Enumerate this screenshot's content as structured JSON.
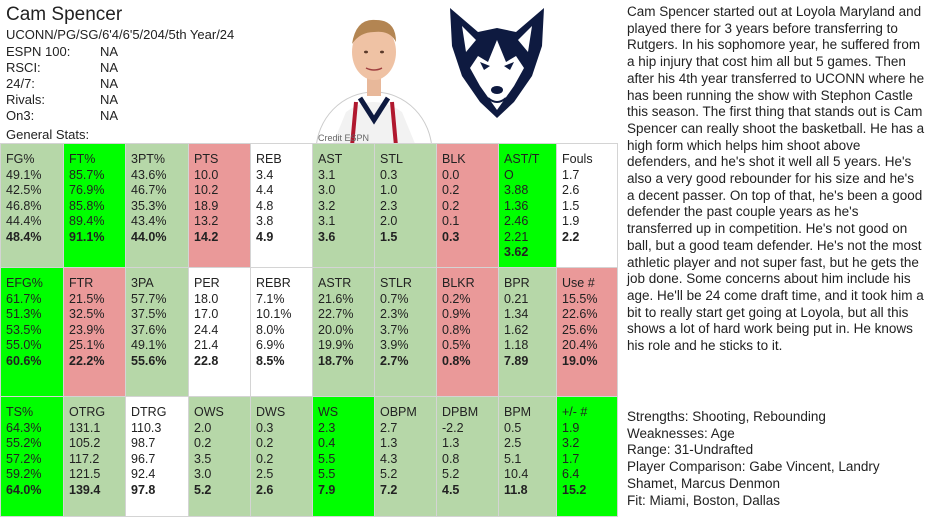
{
  "player": {
    "name": "Cam Spencer",
    "subtitle": "UCONN/PG/SG/6'4/6'5/204/5th Year/24",
    "rankings": [
      {
        "label": "ESPN 100:",
        "value": "NA"
      },
      {
        "label": "RSCI:",
        "value": "NA"
      },
      {
        "label": "24/7:",
        "value": "NA"
      },
      {
        "label": "Rivals:",
        "value": "NA"
      },
      {
        "label": "On3:",
        "value": "NA"
      }
    ],
    "general_stats_label": "General Stats:",
    "photo_credit": "Credit ESPN"
  },
  "colors": {
    "green": "#b6d7a8",
    "bright_green": "#00ff00",
    "red": "#ea9999",
    "white": "#ffffff"
  },
  "stat_blocks": [
    [
      {
        "label": "FG%",
        "color": "green",
        "values": [
          "49.1%",
          "42.5%",
          "46.8%",
          "44.4%",
          "48.4%"
        ]
      },
      {
        "label": "FT%",
        "color": "bright_green",
        "values": [
          "85.7%",
          "76.9%",
          "85.8%",
          "89.4%",
          "91.1%"
        ]
      },
      {
        "label": "3PT%",
        "color": "green",
        "values": [
          "43.6%",
          "46.7%",
          "35.3%",
          "43.4%",
          "44.0%"
        ]
      },
      {
        "label": "PTS",
        "color": "red",
        "values": [
          "10.0",
          "10.2",
          "18.9",
          "13.2",
          "14.2"
        ]
      },
      {
        "label": "REB",
        "color": "white",
        "values": [
          "3.4",
          "4.4",
          "4.8",
          "3.8",
          "4.9"
        ]
      },
      {
        "label": "AST",
        "color": "green",
        "values": [
          "3.1",
          "3.0",
          "3.2",
          "3.1",
          "3.6"
        ]
      },
      {
        "label": "STL",
        "color": "green",
        "values": [
          "0.3",
          "1.0",
          "2.3",
          "2.0",
          "1.5"
        ]
      },
      {
        "label": "BLK",
        "color": "red",
        "values": [
          "0.0",
          "0.2",
          "0.2",
          "0.1",
          "0.3"
        ]
      },
      {
        "label": "AST/T\nO",
        "color": "bright_green",
        "values": [
          "3.88",
          "1.36",
          "2.46",
          "2.21",
          "3.62"
        ]
      },
      {
        "label": "Fouls",
        "color": "white",
        "values": [
          "1.7",
          "2.6",
          "1.5",
          "1.9",
          "2.2"
        ]
      }
    ],
    [
      {
        "label": "EFG%",
        "color": "bright_green",
        "values": [
          "61.7%",
          "51.3%",
          "53.5%",
          "55.0%",
          "60.6%"
        ]
      },
      {
        "label": "FTR",
        "color": "red",
        "values": [
          "21.5%",
          "32.5%",
          "23.9%",
          "25.1%",
          "22.2%"
        ]
      },
      {
        "label": "3PA",
        "color": "green",
        "values": [
          "57.7%",
          "37.5%",
          "37.6%",
          "49.1%",
          "55.6%"
        ]
      },
      {
        "label": "PER",
        "color": "white",
        "values": [
          "18.0",
          "17.0",
          "24.4",
          "21.4",
          "22.8"
        ]
      },
      {
        "label": "REBR",
        "color": "white",
        "values": [
          "7.1%",
          "10.1%",
          "8.0%",
          "6.9%",
          "8.5%"
        ]
      },
      {
        "label": "ASTR",
        "color": "green",
        "values": [
          "21.6%",
          "22.7%",
          "20.0%",
          "19.9%",
          "18.7%"
        ]
      },
      {
        "label": "STLR",
        "color": "green",
        "values": [
          "0.7%",
          "2.3%",
          "3.7%",
          "3.9%",
          "2.7%"
        ]
      },
      {
        "label": "BLKR",
        "color": "red",
        "values": [
          "0.2%",
          "0.9%",
          "0.8%",
          "0.5%",
          "0.8%"
        ]
      },
      {
        "label": "BPR",
        "color": "green",
        "values": [
          "0.21",
          "1.34",
          "1.62",
          "1.18",
          "7.89"
        ]
      },
      {
        "label": "Use #",
        "color": "red",
        "values": [
          "15.5%",
          "22.6%",
          "25.6%",
          "20.4%",
          "19.0%"
        ]
      }
    ],
    [
      {
        "label": "TS%",
        "color": "bright_green",
        "values": [
          "64.3%",
          "55.2%",
          "57.2%",
          "59.2%",
          "64.0%"
        ]
      },
      {
        "label": "OTRG",
        "color": "green",
        "values": [
          "131.1",
          "105.2",
          "117.2",
          "121.5",
          "139.4"
        ]
      },
      {
        "label": "DTRG",
        "color": "white",
        "values": [
          "110.3",
          "98.7",
          "96.7",
          "92.4",
          "97.8"
        ]
      },
      {
        "label": "OWS",
        "color": "green",
        "values": [
          "2.0",
          "0.2",
          "3.5",
          "3.0",
          "5.2"
        ]
      },
      {
        "label": "DWS",
        "color": "green",
        "values": [
          "0.3",
          "0.2",
          "0.2",
          "2.5",
          "2.6"
        ]
      },
      {
        "label": "WS",
        "color": "bright_green",
        "values": [
          "2.3",
          "0.4",
          "5.5",
          "5.5",
          "7.9"
        ]
      },
      {
        "label": "OBPM",
        "color": "green",
        "values": [
          "2.7",
          "1.3",
          "4.3",
          "5.2",
          "7.2"
        ]
      },
      {
        "label": "DPBM",
        "color": "green",
        "values": [
          "-2.2",
          "1.3",
          "0.8",
          "5.2",
          "4.5"
        ]
      },
      {
        "label": "BPM",
        "color": "green",
        "values": [
          "0.5",
          "2.5",
          "5.1",
          "10.4",
          "11.8"
        ]
      },
      {
        "label": "+/- #",
        "color": "bright_green",
        "values": [
          "1.9",
          "3.2",
          "1.7",
          "6.4",
          "15.2"
        ]
      }
    ]
  ],
  "description": "Cam Spencer started out at Loyola Maryland and played there for 3 years before transferring to Rutgers. In his sophomore year, he suffered from a hip injury that cost him all but 5 games. Then after his 4th year transferred to UCONN where he has been running the show with Stephon Castle this season. The first thing that stands out is Cam Spencer can really shoot the basketball. He has a high form which helps him shoot above defenders, and he's shot it well all 5 years. He's also a very good rebounder for his size and he's a decent passer. On top of that, he's been a good defender the past couple years as he's transferred up in competition. He's not good on ball, but a good team defender. He's not the most athletic player and not super fast, but he gets the job done. Some concerns about him include his age. He'll be 24 come draft time, and it took him a bit to really start get going at Loyola, but all this shows a lot of hard work being put in. He knows his role and he sticks to it.",
  "summary": [
    "Strengths: Shooting, Rebounding",
    "Weaknesses: Age",
    "Range: 31-Undrafted",
    "Player Comparison: Gabe Vincent, Landry Shamet, Marcus Denmon",
    "Fit: Miami, Boston, Dallas"
  ]
}
